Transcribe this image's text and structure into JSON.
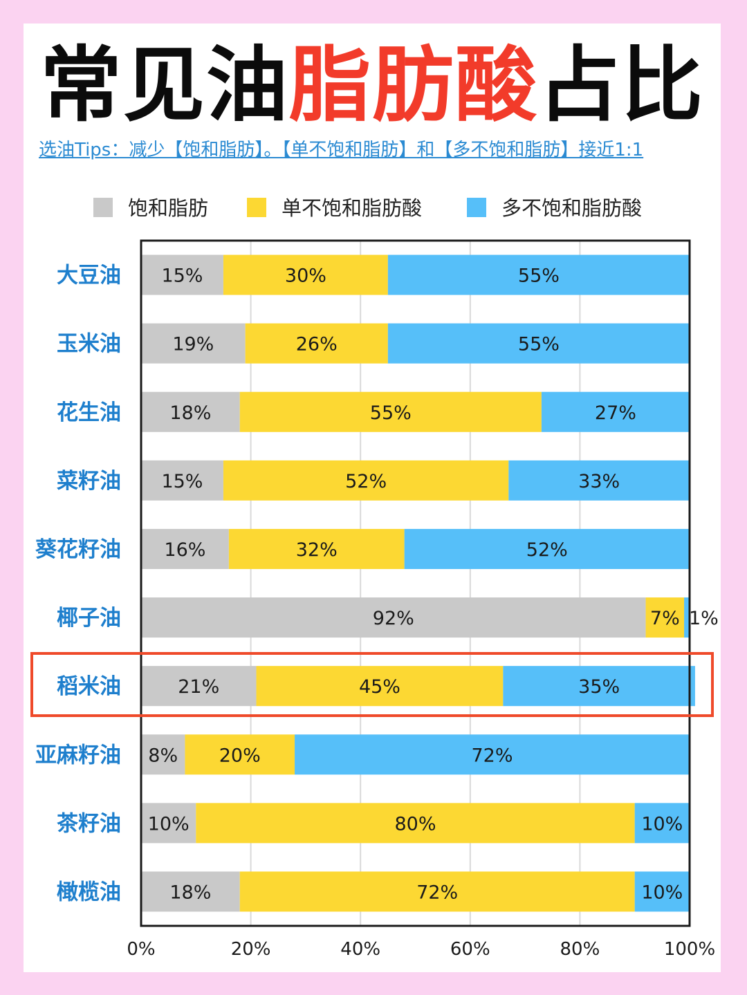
{
  "header": {
    "title_part1": "常见油",
    "title_part2": "脂肪酸",
    "title_part3": "占比",
    "tips": "选油Tips：减少【饱和脂肪】。【单不饱和脂肪】和【多不饱和脂肪】接近1:1"
  },
  "colors": {
    "title_dark": "#0b0b0b",
    "title_red": "#f23b2a",
    "tips_blue": "#2a8ad2",
    "saturated": "#c9c9c9",
    "mono": "#fcd833",
    "poly": "#56bff9",
    "highlight_box": "#ef4a2a",
    "category_text": "#1e7fcd",
    "background_pink": "#fbd3f1"
  },
  "chart_data": {
    "type": "bar",
    "orientation": "horizontal",
    "stacked": true,
    "categories": [
      "大豆油",
      "玉米油",
      "花生油",
      "菜籽油",
      "葵花籽油",
      "椰子油",
      "稻米油",
      "亚麻籽油",
      "茶籽油",
      "橄榄油"
    ],
    "series": [
      {
        "name": "饱和脂肪",
        "values": [
          15,
          19,
          18,
          15,
          16,
          92,
          21,
          8,
          10,
          18
        ]
      },
      {
        "name": "单不饱和脂肪酸",
        "values": [
          30,
          26,
          55,
          52,
          32,
          7,
          45,
          20,
          80,
          72
        ]
      },
      {
        "name": "多不饱和脂肪酸",
        "values": [
          55,
          55,
          27,
          33,
          52,
          1,
          35,
          72,
          10,
          10
        ]
      }
    ],
    "x_ticks": [
      "0%",
      "20%",
      "40%",
      "60%",
      "80%",
      "100%"
    ],
    "xlim": [
      0,
      100
    ],
    "grid": true,
    "legend_position": "top",
    "highlighted_category": "稻米油"
  }
}
